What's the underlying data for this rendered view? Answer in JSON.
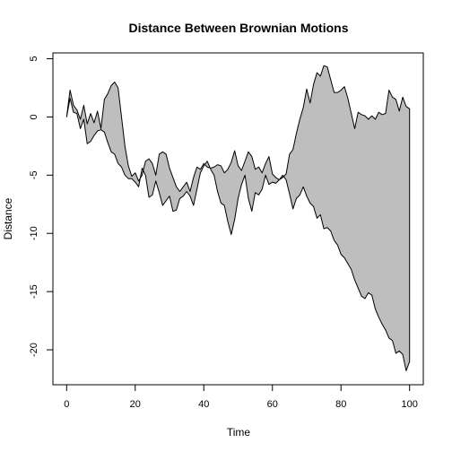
{
  "chart_data": {
    "type": "area",
    "title": "Distance Between Brownian Motions",
    "xlabel": "Time",
    "ylabel": "Distance",
    "xlim": [
      -4,
      104
    ],
    "ylim": [
      -23,
      5.5
    ],
    "x_ticks": [
      0,
      20,
      40,
      60,
      80,
      100
    ],
    "y_ticks": [
      5,
      0,
      -5,
      -10,
      -15,
      -20
    ],
    "grid": false,
    "fill_color": "#bebebe",
    "line_color": "#000000",
    "series": [
      {
        "values": [
          0.0,
          2.3,
          1.0,
          0.6,
          -0.2,
          1.0,
          -0.6,
          0.3,
          -0.5,
          0.5,
          -1.0,
          1.5,
          2.0,
          2.7,
          3.0,
          2.5,
          0.0,
          -2.5,
          -4.2,
          -5.1,
          -4.8,
          -5.5,
          -5.0,
          -3.8,
          -3.6,
          -4.0,
          -5.0,
          -3.2,
          -3.0,
          -3.2,
          -4.4,
          -5.2,
          -6.0,
          -6.4,
          -6.0,
          -5.6,
          -6.4,
          -5.2,
          -4.3,
          -4.5,
          -4.0,
          -4.3,
          -4.4,
          -4.3,
          -4.1,
          -4.2,
          -4.8,
          -4.5,
          -3.9,
          -2.9,
          -4.2,
          -4.6,
          -3.8,
          -3.0,
          -3.4,
          -4.5,
          -4.3,
          -4.8,
          -4.0,
          -3.4,
          -4.9,
          -5.2,
          -5.4,
          -5.2,
          -4.9,
          -3.2,
          -2.8,
          -1.4,
          -0.2,
          0.8,
          2.4,
          1.2,
          2.8,
          3.8,
          3.5,
          4.4,
          4.3,
          3.2,
          2.1,
          2.1,
          2.3,
          2.6,
          1.6,
          0.3,
          -1.0,
          0.4,
          0.2,
          0.1,
          -0.2,
          0.1,
          -0.2,
          0.4,
          0.2,
          0.3,
          2.3,
          1.7,
          1.5,
          0.5,
          1.7,
          0.9,
          0.7
        ]
      },
      {
        "values": [
          0.0,
          1.6,
          0.4,
          0.3,
          -1.0,
          -0.2,
          -2.3,
          -2.1,
          -1.6,
          -1.2,
          -1.1,
          -1.3,
          -2.2,
          -3.0,
          -3.2,
          -4.0,
          -4.3,
          -5.0,
          -5.3,
          -5.3,
          -5.6,
          -6.0,
          -4.4,
          -5.0,
          -6.9,
          -6.7,
          -5.5,
          -6.5,
          -7.6,
          -7.2,
          -6.8,
          -8.1,
          -8.0,
          -7.0,
          -6.8,
          -6.4,
          -6.8,
          -7.6,
          -6.2,
          -4.8,
          -4.2,
          -3.8,
          -4.5,
          -5.0,
          -6.4,
          -7.4,
          -7.6,
          -9.0,
          -10.1,
          -8.8,
          -7.0,
          -5.8,
          -5.0,
          -7.0,
          -8.1,
          -6.5,
          -6.7,
          -6.2,
          -5.0,
          -5.8,
          -5.6,
          -5.7,
          -5.4,
          -5.0,
          -5.4,
          -6.6,
          -7.9,
          -7.0,
          -6.7,
          -6.0,
          -6.8,
          -7.4,
          -7.7,
          -8.7,
          -8.4,
          -9.6,
          -9.5,
          -9.8,
          -10.6,
          -11.0,
          -11.8,
          -12.1,
          -12.6,
          -13.1,
          -14.0,
          -14.7,
          -15.4,
          -15.6,
          -15.1,
          -15.3,
          -16.5,
          -17.2,
          -17.8,
          -18.3,
          -19.0,
          -19.2,
          -20.3,
          -20.1,
          -20.4,
          -21.8,
          -21.0,
          -20.6
        ]
      }
    ]
  }
}
